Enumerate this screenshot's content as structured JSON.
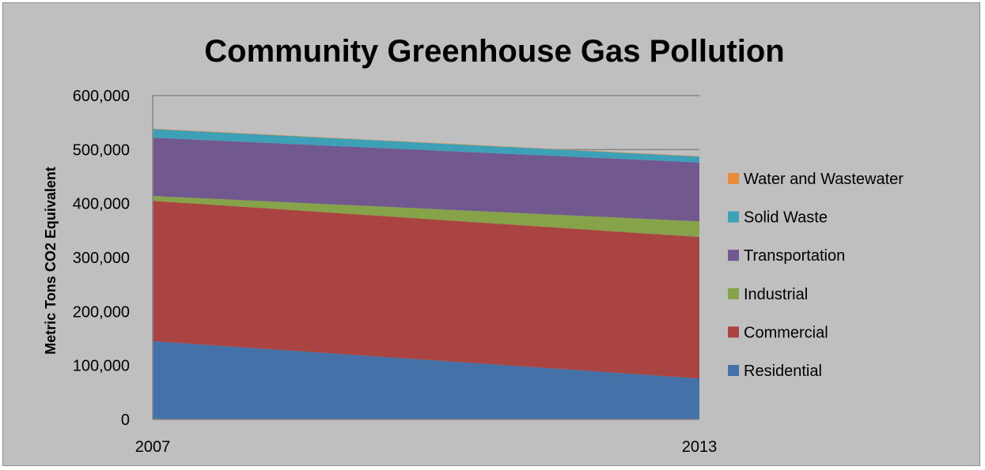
{
  "chart_data": {
    "type": "area",
    "stacked": true,
    "title": "Community Greenhouse Gas Pollution",
    "xlabel": "",
    "ylabel": "Metric Tons CO2 Equivalent",
    "x": [
      "2007",
      "2013"
    ],
    "ylim": [
      0,
      600000
    ],
    "yticks": [
      0,
      100000,
      200000,
      300000,
      400000,
      500000,
      600000
    ],
    "ytick_labels": [
      "0",
      "100,000",
      "200,000",
      "300,000",
      "400,000",
      "500,000",
      "600,000"
    ],
    "grid": true,
    "legend_position": "right",
    "series": [
      {
        "name": "Residential",
        "values": [
          145000,
          76000
        ],
        "color": "#4472a8"
      },
      {
        "name": "Commercial",
        "values": [
          260000,
          262000
        ],
        "color": "#a94442"
      },
      {
        "name": "Industrial",
        "values": [
          9000,
          29000
        ],
        "color": "#86a34a"
      },
      {
        "name": "Transportation",
        "values": [
          108000,
          109000
        ],
        "color": "#71588f"
      },
      {
        "name": "Solid Waste",
        "values": [
          16000,
          11000
        ],
        "color": "#3ea0b7"
      },
      {
        "name": "Water and Wastewater",
        "values": [
          800,
          600
        ],
        "color": "#e98b3a"
      }
    ]
  }
}
